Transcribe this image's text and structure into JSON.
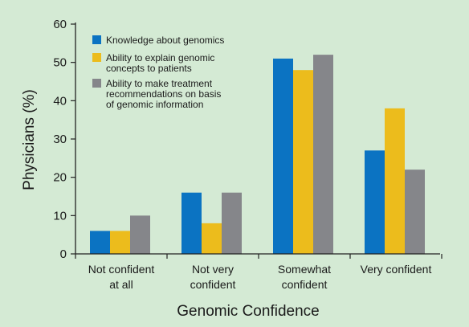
{
  "chart_data": {
    "type": "bar",
    "title": "",
    "xlabel": "Genomic Confidence",
    "ylabel": "Physicians (%)",
    "ylim": [
      0,
      60
    ],
    "yticks": [
      0,
      10,
      20,
      30,
      40,
      50,
      60
    ],
    "grid": false,
    "legend_position": "top-left",
    "categories": [
      [
        "Not confident",
        "at all"
      ],
      [
        "Not very",
        "confident"
      ],
      [
        "Somewhat",
        "confident"
      ],
      [
        "Very confident"
      ]
    ],
    "series": [
      {
        "name": [
          "Knowledge about genomics"
        ],
        "color": "#0b73c2",
        "values": [
          6,
          16,
          51,
          27
        ]
      },
      {
        "name": [
          "Ability to explain genomic",
          "concepts to patients"
        ],
        "color": "#ecbc1c",
        "values": [
          6,
          8,
          48,
          38
        ]
      },
      {
        "name": [
          "Ability to make treatment",
          "recommendations on basis",
          "of genomic information"
        ],
        "color": "#85868a",
        "values": [
          10,
          16,
          52,
          22
        ]
      }
    ]
  }
}
